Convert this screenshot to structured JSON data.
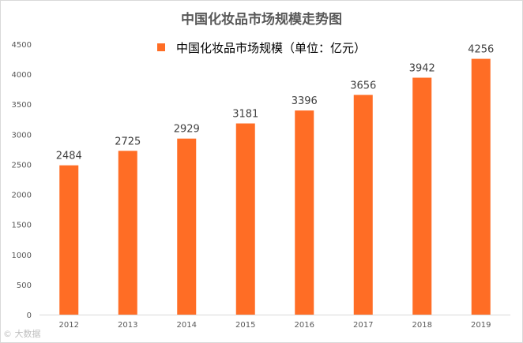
{
  "chart_data": {
    "type": "bar",
    "title": "中国化妆品市场规模走势图",
    "legend": "中国化妆品市场规模（单位：亿元）",
    "categories": [
      "2012",
      "2013",
      "2014",
      "2015",
      "2016",
      "2017",
      "2018",
      "2019"
    ],
    "values": [
      2484,
      2725,
      2929,
      3181,
      3396,
      3656,
      3942,
      4256
    ],
    "ylim": [
      0,
      4500
    ],
    "yticks": [
      0,
      500,
      1000,
      1500,
      2000,
      2500,
      3000,
      3500,
      4000,
      4500
    ],
    "xlabel": "",
    "ylabel": "",
    "grid": false,
    "bar_color": "#ff6d25"
  },
  "watermark": "© 大数据"
}
